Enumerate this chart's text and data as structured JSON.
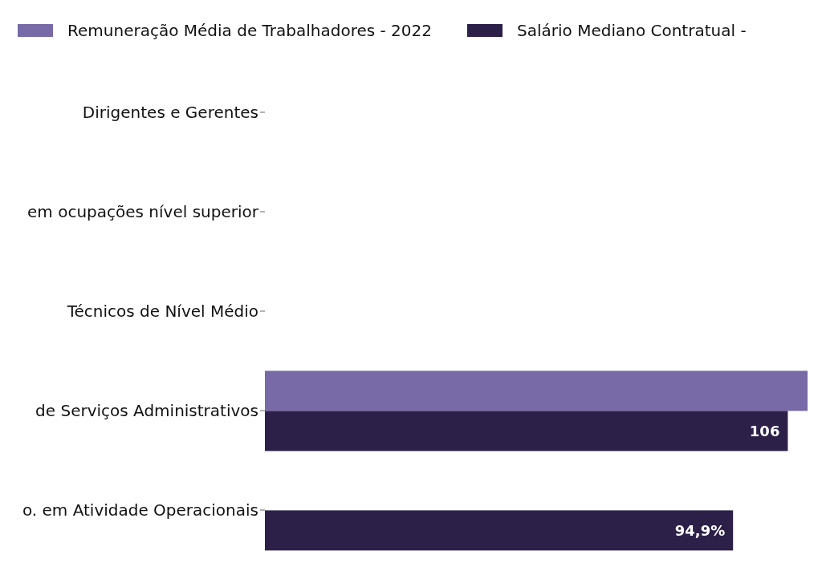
{
  "chart_data": {
    "type": "bar",
    "orientation": "horizontal",
    "legend": "top",
    "categories": [
      "Dirigentes e Gerentes",
      "em ocupações nível superior",
      "Técnicos de Nível Médio",
      "de Serviços Administrativos",
      "o. em Atividade Operacionais"
    ],
    "series": [
      {
        "name": "Remuneração Média de Trabalhadores - 2022",
        "color": "#776aa6",
        "values": [
          null,
          null,
          null,
          110,
          null
        ],
        "value_labels": [
          null,
          null,
          null,
          null,
          null
        ]
      },
      {
        "name": "Salário Mediano Contratual -",
        "color": "#2c2049",
        "values": [
          null,
          null,
          null,
          106,
          94.9
        ],
        "value_labels": [
          null,
          null,
          null,
          "106",
          "94,9%"
        ]
      }
    ]
  }
}
